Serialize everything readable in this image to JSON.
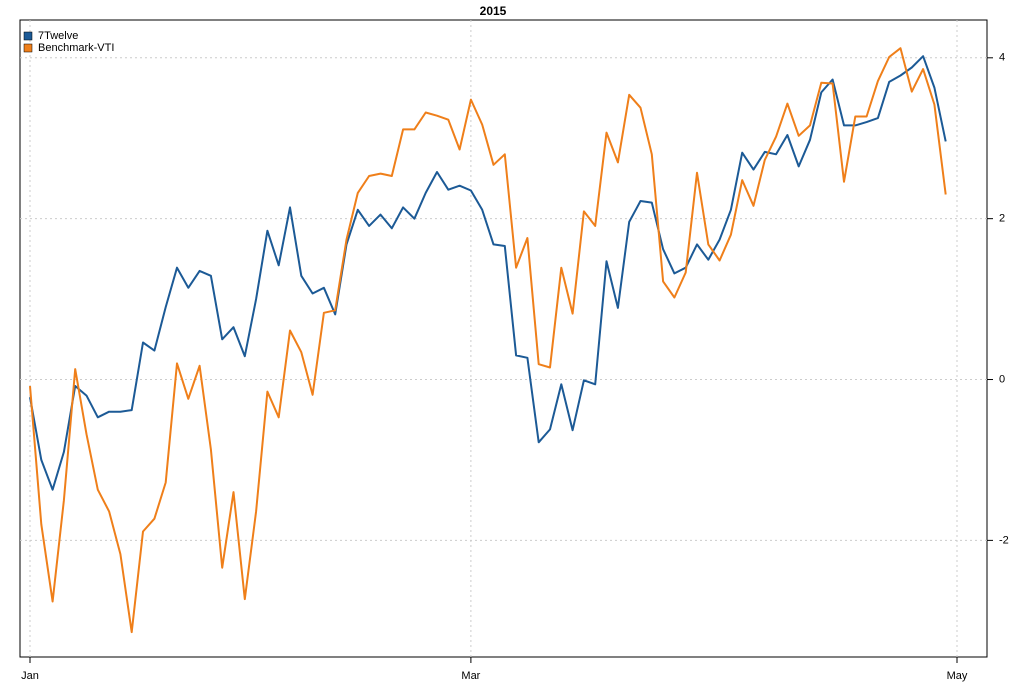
{
  "chart_data": {
    "type": "line",
    "title": "2015",
    "categories": [
      "Jan",
      null,
      null,
      null,
      null,
      null,
      null,
      null,
      null,
      null,
      null,
      null,
      null,
      null,
      null,
      null,
      null,
      null,
      null,
      null,
      null,
      null,
      null,
      null,
      null,
      null,
      null,
      null,
      null,
      null,
      null,
      null,
      null,
      null,
      null,
      null,
      null,
      null,
      null,
      "Mar",
      null,
      null,
      null,
      null,
      null,
      null,
      null,
      null,
      null,
      null,
      null,
      null,
      null,
      null,
      null,
      null,
      null,
      null,
      null,
      null,
      null,
      null,
      null,
      null,
      null,
      null,
      null,
      null,
      null,
      null,
      null,
      null,
      null,
      null,
      null,
      null,
      null,
      null,
      null,
      null,
      null,
      null,
      "May"
    ],
    "series": [
      {
        "name": "7Twelve",
        "color": "#1c5a96",
        "values": [
          -0.22,
          -1.0,
          -1.37,
          -0.9,
          -0.08,
          -0.2,
          -0.47,
          -0.4,
          -0.4,
          -0.38,
          0.46,
          0.36,
          0.9,
          1.39,
          1.14,
          1.35,
          1.29,
          0.5,
          0.65,
          0.29,
          1.0,
          1.85,
          1.42,
          2.14,
          1.29,
          1.07,
          1.14,
          0.81,
          1.68,
          2.11,
          1.91,
          2.05,
          1.88,
          2.14,
          2.0,
          2.32,
          2.58,
          2.36,
          2.41,
          2.35,
          2.11,
          1.68,
          1.66,
          0.3,
          0.27,
          -0.78,
          -0.62,
          -0.06,
          -0.63,
          -0.01,
          -0.06,
          1.47,
          0.89,
          1.96,
          2.22,
          2.2,
          1.62,
          1.32,
          1.39,
          1.68,
          1.49,
          1.74,
          2.11,
          2.82,
          2.61,
          2.83,
          2.8,
          3.04,
          2.65,
          2.98,
          3.57,
          3.73,
          3.16,
          3.16,
          3.2,
          3.25,
          3.7,
          3.78,
          3.88,
          4.02,
          3.63,
          2.96,
          null
        ]
      },
      {
        "name": "Benchmark-VTI",
        "color": "#ef7f1a",
        "values": [
          -0.08,
          -1.8,
          -2.76,
          -1.5,
          0.13,
          -0.68,
          -1.37,
          -1.64,
          -2.17,
          -3.14,
          -1.89,
          -1.73,
          -1.28,
          0.2,
          -0.24,
          0.17,
          -0.87,
          -2.34,
          -1.4,
          -2.73,
          -1.64,
          -0.15,
          -0.47,
          0.61,
          0.34,
          -0.19,
          0.83,
          0.86,
          1.74,
          2.32,
          2.53,
          2.56,
          2.53,
          3.11,
          3.11,
          3.32,
          3.28,
          3.23,
          2.86,
          3.48,
          3.17,
          2.67,
          2.8,
          1.39,
          1.76,
          0.19,
          0.15,
          1.39,
          0.82,
          2.09,
          1.91,
          3.07,
          2.7,
          3.54,
          3.38,
          2.8,
          1.22,
          1.02,
          1.33,
          2.57,
          1.68,
          1.48,
          1.8,
          2.48,
          2.16,
          2.73,
          3.02,
          3.43,
          3.03,
          3.16,
          3.69,
          3.68,
          2.46,
          3.27,
          3.27,
          3.71,
          4.01,
          4.12,
          3.58,
          3.86,
          3.42,
          2.3,
          null
        ]
      }
    ],
    "ylim": [
      -3.45,
      4.47
    ],
    "yticks": [
      -2,
      0,
      2,
      4
    ],
    "grid": true,
    "legend": "top-left"
  }
}
